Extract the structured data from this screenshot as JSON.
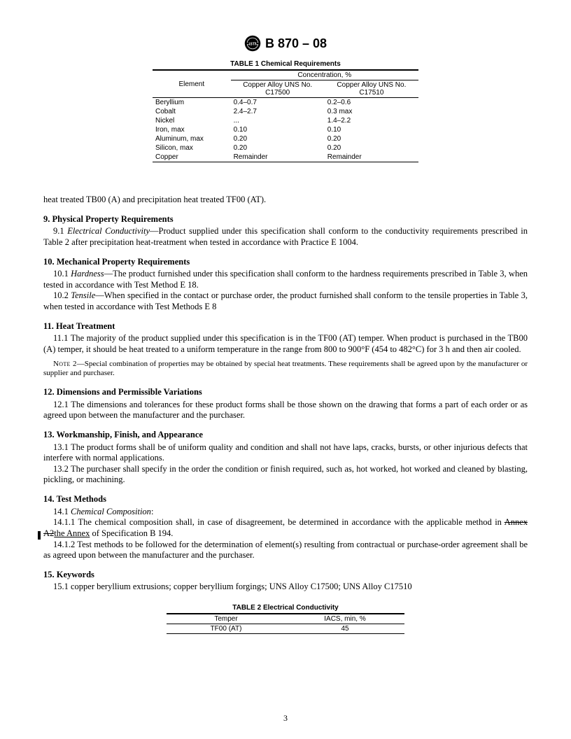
{
  "header": {
    "designation": "B 870 – 08"
  },
  "table1": {
    "title": "TABLE 1  Chemical Requirements",
    "top_span": "Concentration, %",
    "col_left": "Element",
    "col_mid": "Copper Alloy UNS No. C17500",
    "col_right": "Copper Alloy UNS No. C17510",
    "rows": [
      {
        "el": "Beryllium",
        "a": "0.4–0.7",
        "b": "0.2–0.6"
      },
      {
        "el": "Cobalt",
        "a": "2.4–2.7",
        "b": "0.3 max"
      },
      {
        "el": "Nickel",
        "a": "...",
        "b": "1.4–2.2"
      },
      {
        "el": "Iron, max",
        "a": "0.10",
        "b": "0.10"
      },
      {
        "el": "Aluminum, max",
        "a": "0.20",
        "b": "0.20"
      },
      {
        "el": "Silicon, max",
        "a": "0.20",
        "b": "0.20"
      },
      {
        "el": "Copper",
        "a": "Remainder",
        "b": "Remainder"
      }
    ]
  },
  "lead_line": "heat treated TB00 (A) and precipitation heat treated TF00 (AT).",
  "s9": {
    "head": "9. Physical Property Requirements",
    "c91_num": "9.1 ",
    "c91_it": "Electrical Conductivity",
    "c91_rest": "—Product supplied under this specification shall conform to the conductivity requirements prescribed in Table 2 after precipitation heat-treatment when tested in accordance with Practice E 1004."
  },
  "s10": {
    "head": "10. Mechanical Property Requirements",
    "c101_num": "10.1 ",
    "c101_it": "Hardness",
    "c101_rest": "—The product furnished under this specification shall conform to the hardness requirements prescribed in Table 3, when tested in accordance with Test Method E 18.",
    "c102_num": "10.2 ",
    "c102_it": "Tensile",
    "c102_rest": "—When specified in the contact or purchase order, the product furnished shall conform to the tensile properties in Table 3, when tested in accordance with Test Methods E 8"
  },
  "s11": {
    "head": "11. Heat Treatment",
    "c111": "11.1 The majority of the product supplied under this specification is in the TF00 (AT) temper. When product is purchased in the TB00 (A) temper, it should be heat treated to a uniform temperature in the range from 800 to 900°F (454 to 482°C) for 3 h and then air cooled.",
    "note2_label": "Note 2",
    "note2_rest": "—Special combination of properties may be obtained by special heat treatments. These requirements shall be agreed upon by the manufacturer or supplier and purchaser."
  },
  "s12": {
    "head": "12. Dimensions and Permissible Variations",
    "c121": "12.1 The dimensions and tolerances for these product forms shall be those shown on the drawing that forms a part of each order or as agreed upon between the manufacturer and the purchaser."
  },
  "s13": {
    "head": "13. Workmanship, Finish, and Appearance",
    "c131": "13.1 The product forms shall be of uniform quality and condition and shall not have laps, cracks, bursts, or other injurious defects that interfere with normal applications.",
    "c132": "13.2 The purchaser shall specify in the order the condition or finish required, such as, hot worked, hot worked and cleaned by blasting, pickling, or machining."
  },
  "s14": {
    "head": "14. Test Methods",
    "c141_num": "14.1 ",
    "c141_it": "Chemical Composition",
    "c141_colon": ":",
    "c1411_pre": "14.1.1 The chemical composition shall, in case of disagreement, be determined in accordance with the applicable method in ",
    "c1411_strike": "Annex A2",
    "c1411_ul": "the Annex",
    "c1411_post": " of Specification B 194.",
    "c1412": "14.1.2 Test methods to be followed for the determination of element(s) resulting from contractual or purchase-order agreement shall be as agreed upon between the manufacturer and the purchaser."
  },
  "s15": {
    "head": "15. Keywords",
    "c151": "15.1 copper beryllium extrusions; copper beryllium forgings; UNS Alloy C17500; UNS Alloy C17510"
  },
  "table2": {
    "title": "TABLE 2  Electrical Conductivity",
    "h1": "Temper",
    "h2": "IACS, min, %",
    "r1a": "TF00 (AT)",
    "r1b": "45"
  },
  "page_number": "3"
}
